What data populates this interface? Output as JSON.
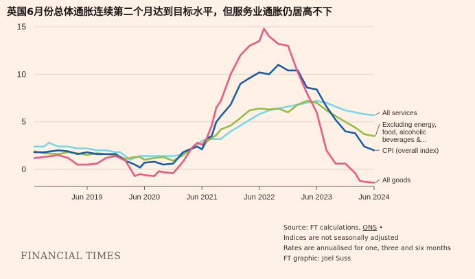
{
  "title": "英国6月份总体通胀连续第二个月达到目标水平，但服务业通胀仍居高不下",
  "chart_data": {
    "type": "line",
    "ylim": [
      -1.8,
      15
    ],
    "yticks": [
      0,
      5,
      10,
      15
    ],
    "xlim": [
      2018.58,
      2024.5
    ],
    "xticks": [
      2019.5,
      2020.5,
      2021.5,
      2022.5,
      2023.5,
      2024.5
    ],
    "xtick_labels": [
      "Jun 2019",
      "Jun 2020",
      "Jun 2021",
      "Jun 2022",
      "Jun 2023",
      "Jun 2024"
    ],
    "grid": true,
    "series": [
      {
        "name": "All services",
        "label_lines": [
          "All services"
        ],
        "color": "#7ad8e6",
        "x": [
          2018.58,
          2018.75,
          2018.83,
          2019.0,
          2019.17,
          2019.33,
          2019.5,
          2019.67,
          2019.83,
          2020.0,
          2020.08,
          2020.25,
          2020.33,
          2020.42,
          2020.5,
          2020.67,
          2020.83,
          2021.0,
          2021.17,
          2021.33,
          2021.42,
          2021.5,
          2021.58,
          2021.67,
          2021.75,
          2021.83,
          2022.0,
          2022.17,
          2022.33,
          2022.5,
          2022.67,
          2022.83,
          2023.0,
          2023.17,
          2023.33,
          2023.5,
          2023.67,
          2023.83,
          2024.0,
          2024.17,
          2024.33,
          2024.5
        ],
        "values": [
          2.4,
          2.4,
          2.8,
          2.4,
          2.4,
          2.2,
          2.2,
          2.0,
          2.0,
          1.8,
          1.8,
          1.0,
          1.2,
          1.4,
          1.4,
          1.4,
          1.4,
          1.4,
          1.6,
          2.2,
          2.6,
          3.0,
          3.2,
          3.2,
          3.2,
          3.2,
          4.0,
          4.6,
          5.2,
          5.8,
          6.2,
          6.4,
          6.6,
          6.8,
          7.0,
          7.2,
          7.0,
          6.6,
          6.2,
          6.0,
          5.8,
          5.7
        ]
      },
      {
        "name": "Excluding energy, food, alcoholic beverages & tobacco",
        "label_lines": [
          "Excluding energy,",
          "food, alcoholic",
          "beverages &..."
        ],
        "color": "#96bb4a",
        "x": [
          2018.58,
          2018.75,
          2019.0,
          2019.17,
          2019.33,
          2019.5,
          2019.67,
          2019.83,
          2020.0,
          2020.17,
          2020.33,
          2020.42,
          2020.5,
          2020.67,
          2020.83,
          2021.0,
          2021.17,
          2021.33,
          2021.42,
          2021.5,
          2021.58,
          2021.67,
          2021.75,
          2021.83,
          2022.0,
          2022.17,
          2022.33,
          2022.5,
          2022.67,
          2022.83,
          2023.0,
          2023.17,
          2023.33,
          2023.5,
          2023.67,
          2023.83,
          2024.0,
          2024.17,
          2024.33,
          2024.5
        ],
        "values": [
          1.9,
          1.7,
          1.6,
          1.8,
          1.7,
          1.5,
          1.7,
          1.6,
          1.5,
          1.1,
          1.3,
          1.3,
          1.0,
          1.2,
          1.3,
          0.9,
          1.5,
          2.2,
          2.4,
          2.1,
          2.9,
          3.3,
          3.6,
          4.2,
          4.6,
          5.4,
          6.2,
          6.4,
          6.3,
          6.4,
          6.0,
          6.8,
          7.2,
          7.0,
          6.2,
          5.6,
          5.0,
          4.4,
          3.7,
          3.5
        ]
      },
      {
        "name": "CPI (overall index)",
        "label_lines": [
          "CPI (overall index)"
        ],
        "color": "#1a5fa5",
        "x": [
          2018.58,
          2018.75,
          2019.0,
          2019.17,
          2019.33,
          2019.5,
          2019.67,
          2019.83,
          2020.0,
          2020.17,
          2020.33,
          2020.42,
          2020.5,
          2020.67,
          2020.83,
          2021.0,
          2021.17,
          2021.33,
          2021.42,
          2021.5,
          2021.58,
          2021.67,
          2021.75,
          2021.83,
          2022.0,
          2022.17,
          2022.33,
          2022.5,
          2022.67,
          2022.83,
          2023.0,
          2023.17,
          2023.33,
          2023.5,
          2023.67,
          2023.83,
          2024.0,
          2024.17,
          2024.33,
          2024.5
        ],
        "values": [
          1.8,
          1.8,
          2.0,
          1.9,
          1.6,
          1.8,
          1.6,
          1.6,
          1.6,
          0.9,
          0.5,
          0.2,
          0.7,
          0.8,
          0.5,
          0.6,
          1.8,
          2.2,
          2.4,
          2.1,
          3.2,
          3.5,
          5.0,
          5.6,
          6.8,
          9.0,
          9.6,
          10.2,
          10.0,
          11.0,
          10.4,
          10.4,
          8.6,
          8.4,
          6.6,
          5.2,
          4.0,
          3.8,
          2.4,
          2.0
        ]
      },
      {
        "name": "All goods",
        "label_lines": [
          "All goods"
        ],
        "color": "#ea5a83",
        "x": [
          2018.58,
          2018.75,
          2019.0,
          2019.17,
          2019.33,
          2019.5,
          2019.67,
          2019.83,
          2020.0,
          2020.17,
          2020.33,
          2020.42,
          2020.5,
          2020.67,
          2020.75,
          2020.83,
          2021.0,
          2021.17,
          2021.33,
          2021.42,
          2021.5,
          2021.58,
          2021.67,
          2021.75,
          2021.83,
          2022.0,
          2022.17,
          2022.33,
          2022.5,
          2022.58,
          2022.67,
          2022.83,
          2023.0,
          2023.17,
          2023.33,
          2023.5,
          2023.67,
          2023.83,
          2024.0,
          2024.17,
          2024.25,
          2024.33,
          2024.5
        ],
        "values": [
          1.2,
          1.3,
          1.5,
          1.2,
          0.5,
          0.5,
          0.6,
          1.2,
          1.4,
          0.9,
          -0.7,
          -0.5,
          -0.6,
          -0.7,
          -0.2,
          -0.3,
          -0.4,
          0.8,
          2.3,
          2.8,
          2.6,
          3.2,
          4.6,
          6.5,
          7.2,
          10.0,
          12.0,
          13.0,
          13.5,
          14.8,
          14.0,
          13.2,
          13.0,
          10.2,
          8.0,
          6.0,
          2.0,
          0.6,
          0.6,
          -0.4,
          -1.2,
          -1.3,
          -1.4
        ]
      }
    ],
    "source_lines": [
      "Indices are not seasonally adjusted",
      "Rates are annualised for one, three and six months",
      "FT graphic: Joel Suss"
    ],
    "source_prefix": "Source: FT calculations, ",
    "source_link": "ONS",
    "source_suffix": " •"
  },
  "footer": {
    "brand": "FINANCIAL TIMES"
  }
}
